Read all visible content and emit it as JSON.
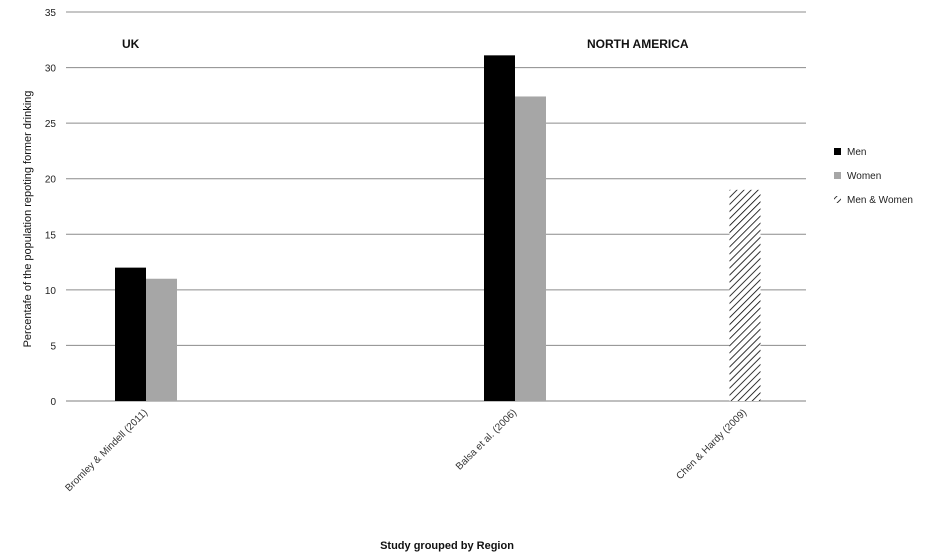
{
  "chart_data": {
    "type": "bar",
    "xlabel": "Study grouped by Region",
    "ylabel": "Percentafe of the population repoting  former drinking",
    "ylim": [
      0,
      35
    ],
    "yticks": [
      "0",
      "5",
      "10",
      "15",
      "20",
      "25",
      "30",
      "35"
    ],
    "grid": "horizontal",
    "legend_position": "right",
    "regions": [
      {
        "label": "UK"
      },
      {
        "label": "NORTH AMERICA"
      }
    ],
    "categories": [
      "Bromley & Mindell (2011)",
      "Balsa et al. (2006)",
      "Chen & Hardy (2009)"
    ],
    "series": [
      {
        "name": "Men",
        "color": "#000000",
        "fill": "solid",
        "values": [
          12,
          31.1,
          null
        ]
      },
      {
        "name": "Women",
        "color": "#a6a6a6",
        "fill": "solid",
        "values": [
          11,
          27.4,
          null
        ]
      },
      {
        "name": "Men & Women",
        "color": "#000000",
        "fill": "hatched",
        "values": [
          null,
          null,
          19
        ]
      }
    ]
  }
}
